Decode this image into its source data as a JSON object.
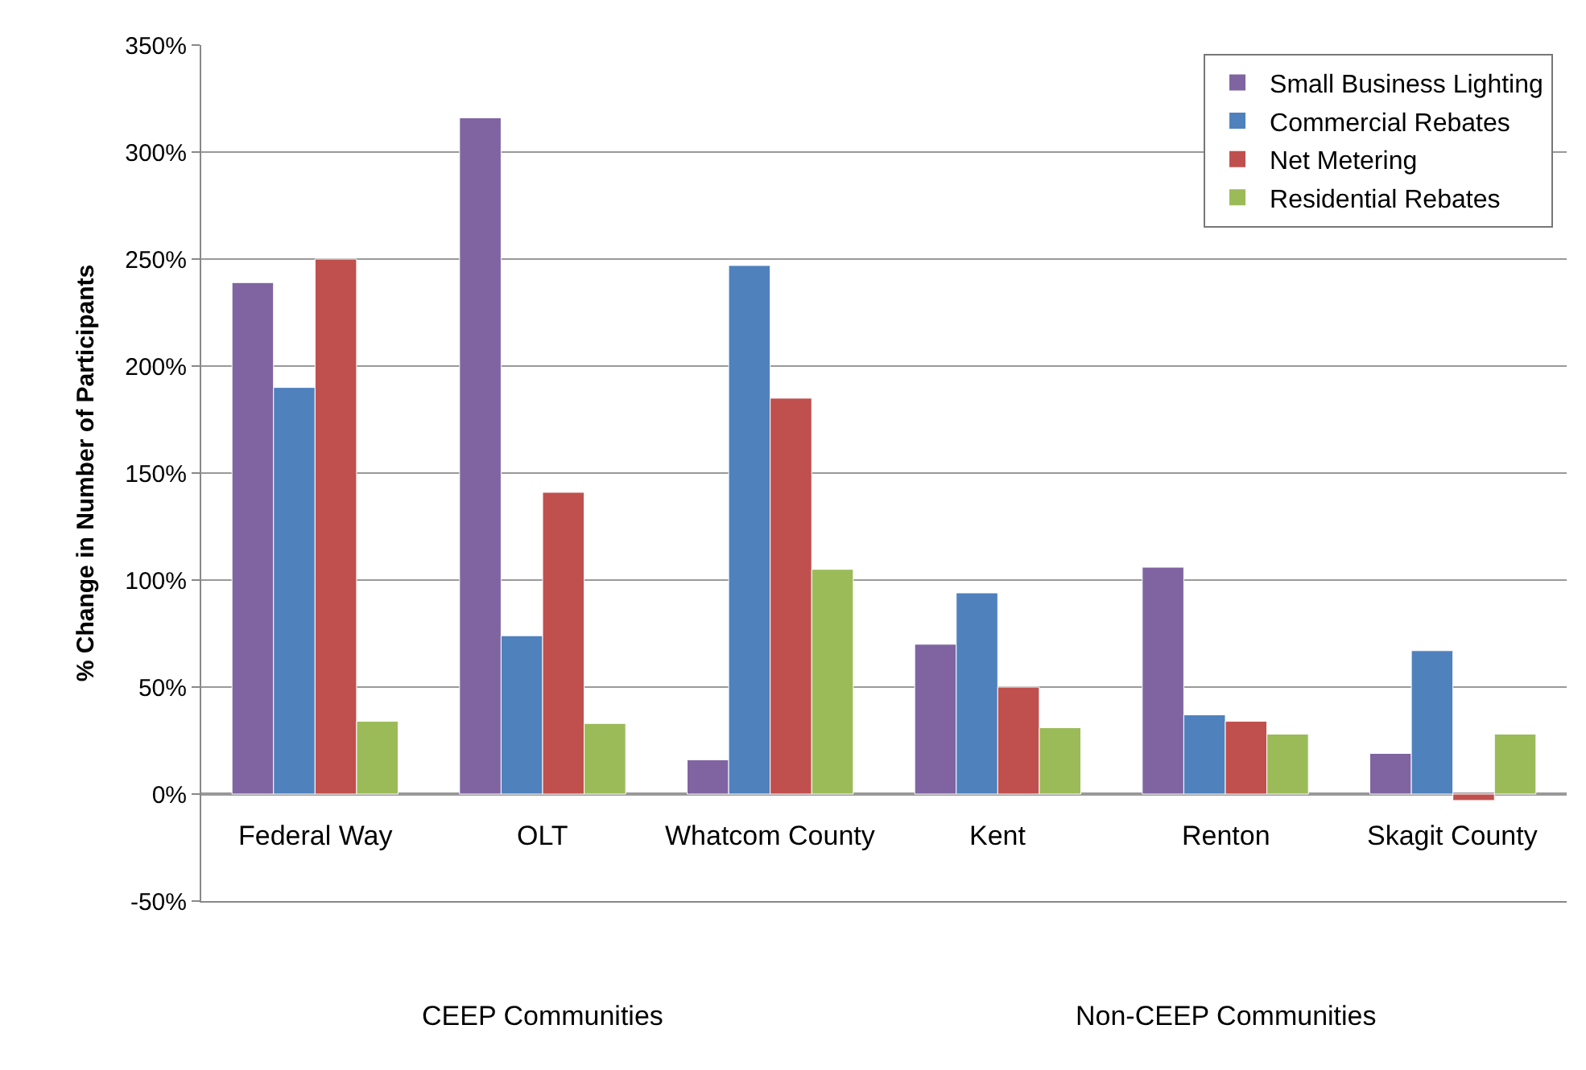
{
  "chart_data": {
    "type": "bar",
    "ylabel": "% Change in Number of Participants",
    "categories": [
      "Federal Way",
      "OLT",
      "Whatcom County",
      "Kent",
      "Renton",
      "Skagit County"
    ],
    "series": [
      {
        "name": "Small Business Lighting",
        "color": "#8064a2",
        "values": [
          239,
          316,
          16,
          70,
          106,
          19
        ]
      },
      {
        "name": "Commercial Rebates",
        "color": "#4f81bd",
        "values": [
          190,
          74,
          247,
          94,
          37,
          67
        ]
      },
      {
        "name": "Net Metering",
        "color": "#c0504d",
        "values": [
          250,
          141,
          185,
          50,
          34,
          -3
        ]
      },
      {
        "name": "Residential Rebates",
        "color": "#9bbb59",
        "values": [
          34,
          33,
          105,
          31,
          28,
          28
        ]
      }
    ],
    "ylim": [
      -50,
      350
    ],
    "yticks": [
      {
        "value": -50,
        "label": "-50%"
      },
      {
        "value": 0,
        "label": "0%"
      },
      {
        "value": 50,
        "label": "50%"
      },
      {
        "value": 100,
        "label": "100%"
      },
      {
        "value": 150,
        "label": "150%"
      },
      {
        "value": 200,
        "label": "200%"
      },
      {
        "value": 250,
        "label": "250%"
      },
      {
        "value": 300,
        "label": "300%"
      },
      {
        "value": 350,
        "label": "350%"
      }
    ],
    "annotations": [
      "CEEP Communities",
      "Non-CEEP Communities"
    ],
    "grid": "y",
    "legend": "top right"
  }
}
